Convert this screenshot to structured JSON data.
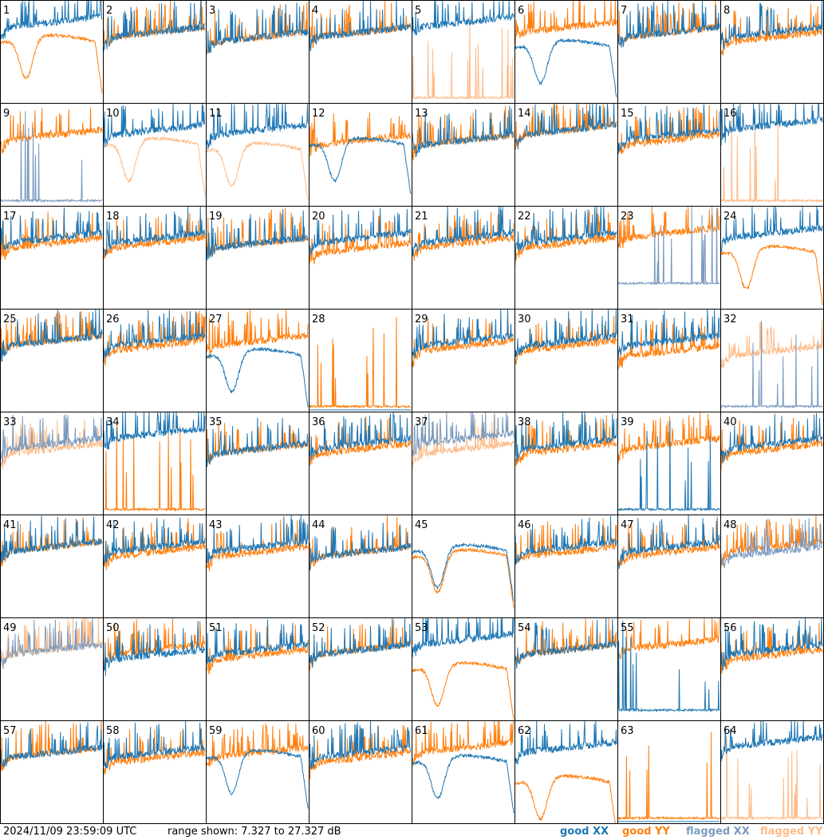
{
  "footer": {
    "timestamp": "2024/11/09 23:59:09 UTC",
    "range_text": "range shown: 7.327 to 27.327 dB"
  },
  "legend": [
    {
      "label": "good XX",
      "color": "#1f77b4"
    },
    {
      "label": "good YY",
      "color": "#ff7f0e"
    },
    {
      "label": "flagged XX",
      "color": "#7a9bbf"
    },
    {
      "label": "flagged YY",
      "color": "#ffbb88"
    }
  ],
  "chart_data": {
    "type": "line",
    "layout": "8x8 small multiples",
    "ylim": [
      7.327,
      27.327
    ],
    "unit": "dB",
    "panels": [
      {
        "id": "1",
        "xx": {
          "kind": "noisy",
          "level": 22,
          "state": "good"
        },
        "yy": {
          "kind": "dip",
          "level": 19,
          "state": "good"
        }
      },
      {
        "id": "2",
        "xx": {
          "kind": "noisy",
          "level": 20,
          "state": "good"
        },
        "yy": {
          "kind": "noisy",
          "level": 20,
          "state": "good"
        }
      },
      {
        "id": "3",
        "xx": {
          "kind": "noisy",
          "level": 19,
          "state": "good"
        },
        "yy": {
          "kind": "noisy",
          "level": 19,
          "state": "good"
        }
      },
      {
        "id": "4",
        "xx": {
          "kind": "noisy",
          "level": 20,
          "state": "good"
        },
        "yy": {
          "kind": "noisy",
          "level": 20,
          "state": "good"
        }
      },
      {
        "id": "5",
        "xx": {
          "kind": "noisy",
          "level": 22,
          "state": "good"
        },
        "yy": {
          "kind": "spiky",
          "level": 8,
          "state": "flagged"
        }
      },
      {
        "id": "6",
        "xx": {
          "kind": "dip",
          "level": 18,
          "state": "good"
        },
        "yy": {
          "kind": "noisy",
          "level": 21,
          "state": "good"
        }
      },
      {
        "id": "7",
        "xx": {
          "kind": "noisy",
          "level": 20,
          "state": "good"
        },
        "yy": {
          "kind": "noisy",
          "level": 20,
          "state": "good"
        }
      },
      {
        "id": "8",
        "xx": {
          "kind": "noisy",
          "level": 20,
          "state": "good"
        },
        "yy": {
          "kind": "noisy",
          "level": 19,
          "state": "good"
        }
      },
      {
        "id": "9",
        "xx": {
          "kind": "spiky",
          "level": 8,
          "state": "flagged"
        },
        "yy": {
          "kind": "noisy",
          "level": 20,
          "state": "good"
        }
      },
      {
        "id": "10",
        "xx": {
          "kind": "noisy",
          "level": 21,
          "state": "good"
        },
        "yy": {
          "kind": "dip",
          "level": 19,
          "state": "flagged"
        }
      },
      {
        "id": "11",
        "xx": {
          "kind": "noisy",
          "level": 21,
          "state": "good"
        },
        "yy": {
          "kind": "dip",
          "level": 18,
          "state": "flagged"
        }
      },
      {
        "id": "12",
        "xx": {
          "kind": "dip",
          "level": 19,
          "state": "good"
        },
        "yy": {
          "kind": "noisy",
          "level": 19,
          "state": "good"
        }
      },
      {
        "id": "13",
        "xx": {
          "kind": "noisy",
          "level": 19,
          "state": "good"
        },
        "yy": {
          "kind": "noisy",
          "level": 19,
          "state": "good"
        }
      },
      {
        "id": "14",
        "xx": {
          "kind": "noisy",
          "level": 21,
          "state": "good"
        },
        "yy": {
          "kind": "noisy",
          "level": 21,
          "state": "good"
        }
      },
      {
        "id": "15",
        "xx": {
          "kind": "noisy",
          "level": 20,
          "state": "good"
        },
        "yy": {
          "kind": "noisy",
          "level": 19,
          "state": "good"
        }
      },
      {
        "id": "16",
        "xx": {
          "kind": "noisy",
          "level": 22,
          "state": "good"
        },
        "yy": {
          "kind": "spiky",
          "level": 8,
          "state": "flagged"
        }
      },
      {
        "id": "17",
        "xx": {
          "kind": "noisy",
          "level": 20,
          "state": "good"
        },
        "yy": {
          "kind": "noisy",
          "level": 19,
          "state": "good"
        }
      },
      {
        "id": "18",
        "xx": {
          "kind": "noisy",
          "level": 20,
          "state": "good"
        },
        "yy": {
          "kind": "noisy",
          "level": 19,
          "state": "good"
        }
      },
      {
        "id": "19",
        "xx": {
          "kind": "noisy",
          "level": 19,
          "state": "good"
        },
        "yy": {
          "kind": "noisy",
          "level": 19,
          "state": "good"
        }
      },
      {
        "id": "20",
        "xx": {
          "kind": "noisy",
          "level": 20,
          "state": "good"
        },
        "yy": {
          "kind": "noisy",
          "level": 18,
          "state": "good"
        }
      },
      {
        "id": "21",
        "xx": {
          "kind": "noisy",
          "level": 20,
          "state": "good"
        },
        "yy": {
          "kind": "noisy",
          "level": 19,
          "state": "good"
        }
      },
      {
        "id": "22",
        "xx": {
          "kind": "noisy",
          "level": 20,
          "state": "good"
        },
        "yy": {
          "kind": "noisy",
          "level": 19,
          "state": "good"
        }
      },
      {
        "id": "23",
        "xx": {
          "kind": "spiky",
          "level": 12,
          "state": "flagged"
        },
        "yy": {
          "kind": "noisy",
          "level": 21,
          "state": "good"
        }
      },
      {
        "id": "24",
        "xx": {
          "kind": "noisy",
          "level": 21,
          "state": "good"
        },
        "yy": {
          "kind": "dip",
          "level": 18,
          "state": "good"
        }
      },
      {
        "id": "25",
        "xx": {
          "kind": "noisy",
          "level": 20,
          "state": "good"
        },
        "yy": {
          "kind": "noisy",
          "level": 20,
          "state": "good"
        }
      },
      {
        "id": "26",
        "xx": {
          "kind": "noisy",
          "level": 20,
          "state": "good"
        },
        "yy": {
          "kind": "noisy",
          "level": 19,
          "state": "good"
        }
      },
      {
        "id": "27",
        "xx": {
          "kind": "dip",
          "level": 18,
          "state": "good"
        },
        "yy": {
          "kind": "noisy",
          "level": 20,
          "state": "good"
        }
      },
      {
        "id": "28",
        "xx": {
          "kind": "flat",
          "level": 7.5,
          "state": "good"
        },
        "yy": {
          "kind": "spiky",
          "level": 8,
          "state": "good"
        }
      },
      {
        "id": "29",
        "xx": {
          "kind": "noisy",
          "level": 20,
          "state": "good"
        },
        "yy": {
          "kind": "noisy",
          "level": 19,
          "state": "good"
        }
      },
      {
        "id": "30",
        "xx": {
          "kind": "noisy",
          "level": 20,
          "state": "good"
        },
        "yy": {
          "kind": "noisy",
          "level": 19,
          "state": "good"
        }
      },
      {
        "id": "31",
        "xx": {
          "kind": "noisy",
          "level": 20,
          "state": "good"
        },
        "yy": {
          "kind": "noisy",
          "level": 18,
          "state": "good"
        }
      },
      {
        "id": "32",
        "xx": {
          "kind": "spiky",
          "level": 8,
          "state": "flagged"
        },
        "yy": {
          "kind": "noisy",
          "level": 18,
          "state": "flagged"
        }
      },
      {
        "id": "33",
        "xx": {
          "kind": "noisy",
          "level": 20,
          "state": "flagged"
        },
        "yy": {
          "kind": "noisy",
          "level": 19,
          "state": "flagged"
        }
      },
      {
        "id": "34",
        "xx": {
          "kind": "noisy",
          "level": 22,
          "state": "good"
        },
        "yy": {
          "kind": "spiky",
          "level": 8,
          "state": "good"
        }
      },
      {
        "id": "35",
        "xx": {
          "kind": "noisy",
          "level": 19,
          "state": "good"
        },
        "yy": {
          "kind": "noisy",
          "level": 19,
          "state": "good"
        }
      },
      {
        "id": "36",
        "xx": {
          "kind": "noisy",
          "level": 20,
          "state": "good"
        },
        "yy": {
          "kind": "noisy",
          "level": 19,
          "state": "good"
        }
      },
      {
        "id": "37",
        "xx": {
          "kind": "noisy",
          "level": 21,
          "state": "flagged"
        },
        "yy": {
          "kind": "noisy",
          "level": 19,
          "state": "flagged"
        }
      },
      {
        "id": "38",
        "xx": {
          "kind": "noisy",
          "level": 20,
          "state": "good"
        },
        "yy": {
          "kind": "noisy",
          "level": 19,
          "state": "good"
        }
      },
      {
        "id": "39",
        "xx": {
          "kind": "spiky",
          "level": 8,
          "state": "good"
        },
        "yy": {
          "kind": "noisy",
          "level": 20,
          "state": "good"
        }
      },
      {
        "id": "40",
        "xx": {
          "kind": "noisy",
          "level": 20,
          "state": "good"
        },
        "yy": {
          "kind": "noisy",
          "level": 19,
          "state": "good"
        }
      },
      {
        "id": "41",
        "xx": {
          "kind": "noisy",
          "level": 20,
          "state": "good"
        },
        "yy": {
          "kind": "noisy",
          "level": 20,
          "state": "good"
        }
      },
      {
        "id": "42",
        "xx": {
          "kind": "noisy",
          "level": 20,
          "state": "good"
        },
        "yy": {
          "kind": "noisy",
          "level": 19,
          "state": "good"
        }
      },
      {
        "id": "43",
        "xx": {
          "kind": "noisy",
          "level": 20,
          "state": "good"
        },
        "yy": {
          "kind": "noisy",
          "level": 19,
          "state": "good"
        }
      },
      {
        "id": "44",
        "xx": {
          "kind": "noisy",
          "level": 19,
          "state": "good"
        },
        "yy": {
          "kind": "noisy",
          "level": 19,
          "state": "good"
        }
      },
      {
        "id": "45",
        "xx": {
          "kind": "dip",
          "level": 20,
          "state": "good"
        },
        "yy": {
          "kind": "dip",
          "level": 19,
          "state": "good"
        }
      },
      {
        "id": "46",
        "xx": {
          "kind": "noisy",
          "level": 20,
          "state": "good"
        },
        "yy": {
          "kind": "noisy",
          "level": 19,
          "state": "good"
        }
      },
      {
        "id": "47",
        "xx": {
          "kind": "noisy",
          "level": 20,
          "state": "good"
        },
        "yy": {
          "kind": "noisy",
          "level": 19,
          "state": "good"
        }
      },
      {
        "id": "48",
        "xx": {
          "kind": "noisy",
          "level": 19,
          "state": "flagged"
        },
        "yy": {
          "kind": "noisy",
          "level": 20,
          "state": "good"
        }
      },
      {
        "id": "49",
        "xx": {
          "kind": "noisy",
          "level": 20,
          "state": "flagged"
        },
        "yy": {
          "kind": "noisy",
          "level": 20,
          "state": "flagged"
        }
      },
      {
        "id": "50",
        "xx": {
          "kind": "noisy",
          "level": 19,
          "state": "good"
        },
        "yy": {
          "kind": "noisy",
          "level": 20,
          "state": "good"
        }
      },
      {
        "id": "51",
        "xx": {
          "kind": "noisy",
          "level": 20,
          "state": "good"
        },
        "yy": {
          "kind": "noisy",
          "level": 19,
          "state": "good"
        }
      },
      {
        "id": "52",
        "xx": {
          "kind": "noisy",
          "level": 20,
          "state": "good"
        },
        "yy": {
          "kind": "noisy",
          "level": 20,
          "state": "good"
        }
      },
      {
        "id": "53",
        "xx": {
          "kind": "noisy",
          "level": 22,
          "state": "good"
        },
        "yy": {
          "kind": "dip",
          "level": 17,
          "state": "good"
        }
      },
      {
        "id": "54",
        "xx": {
          "kind": "noisy",
          "level": 20,
          "state": "good"
        },
        "yy": {
          "kind": "noisy",
          "level": 20,
          "state": "good"
        }
      },
      {
        "id": "55",
        "xx": {
          "kind": "spiky",
          "level": 9,
          "state": "good"
        },
        "yy": {
          "kind": "noisy",
          "level": 21,
          "state": "good"
        }
      },
      {
        "id": "56",
        "xx": {
          "kind": "noisy",
          "level": 20,
          "state": "good"
        },
        "yy": {
          "kind": "noisy",
          "level": 19,
          "state": "good"
        }
      },
      {
        "id": "57",
        "xx": {
          "kind": "noisy",
          "level": 20,
          "state": "good"
        },
        "yy": {
          "kind": "noisy",
          "level": 20,
          "state": "good"
        }
      },
      {
        "id": "58",
        "xx": {
          "kind": "noisy",
          "level": 20,
          "state": "good"
        },
        "yy": {
          "kind": "noisy",
          "level": 19,
          "state": "good"
        }
      },
      {
        "id": "59",
        "xx": {
          "kind": "dip",
          "level": 20,
          "state": "good"
        },
        "yy": {
          "kind": "noisy",
          "level": 20,
          "state": "good"
        }
      },
      {
        "id": "60",
        "xx": {
          "kind": "noisy",
          "level": 20,
          "state": "good"
        },
        "yy": {
          "kind": "noisy",
          "level": 19,
          "state": "good"
        }
      },
      {
        "id": "61",
        "xx": {
          "kind": "dip",
          "level": 19,
          "state": "good"
        },
        "yy": {
          "kind": "noisy",
          "level": 21,
          "state": "good"
        }
      },
      {
        "id": "62",
        "xx": {
          "kind": "noisy",
          "level": 21,
          "state": "good"
        },
        "yy": {
          "kind": "dip",
          "level": 15,
          "state": "good"
        }
      },
      {
        "id": "63",
        "xx": {
          "kind": "flat",
          "level": 7.5,
          "state": "good"
        },
        "yy": {
          "kind": "spiky",
          "level": 8,
          "state": "good"
        }
      },
      {
        "id": "64",
        "xx": {
          "kind": "noisy",
          "level": 22,
          "state": "good"
        },
        "yy": {
          "kind": "spiky",
          "level": 8,
          "state": "flagged"
        }
      }
    ]
  }
}
